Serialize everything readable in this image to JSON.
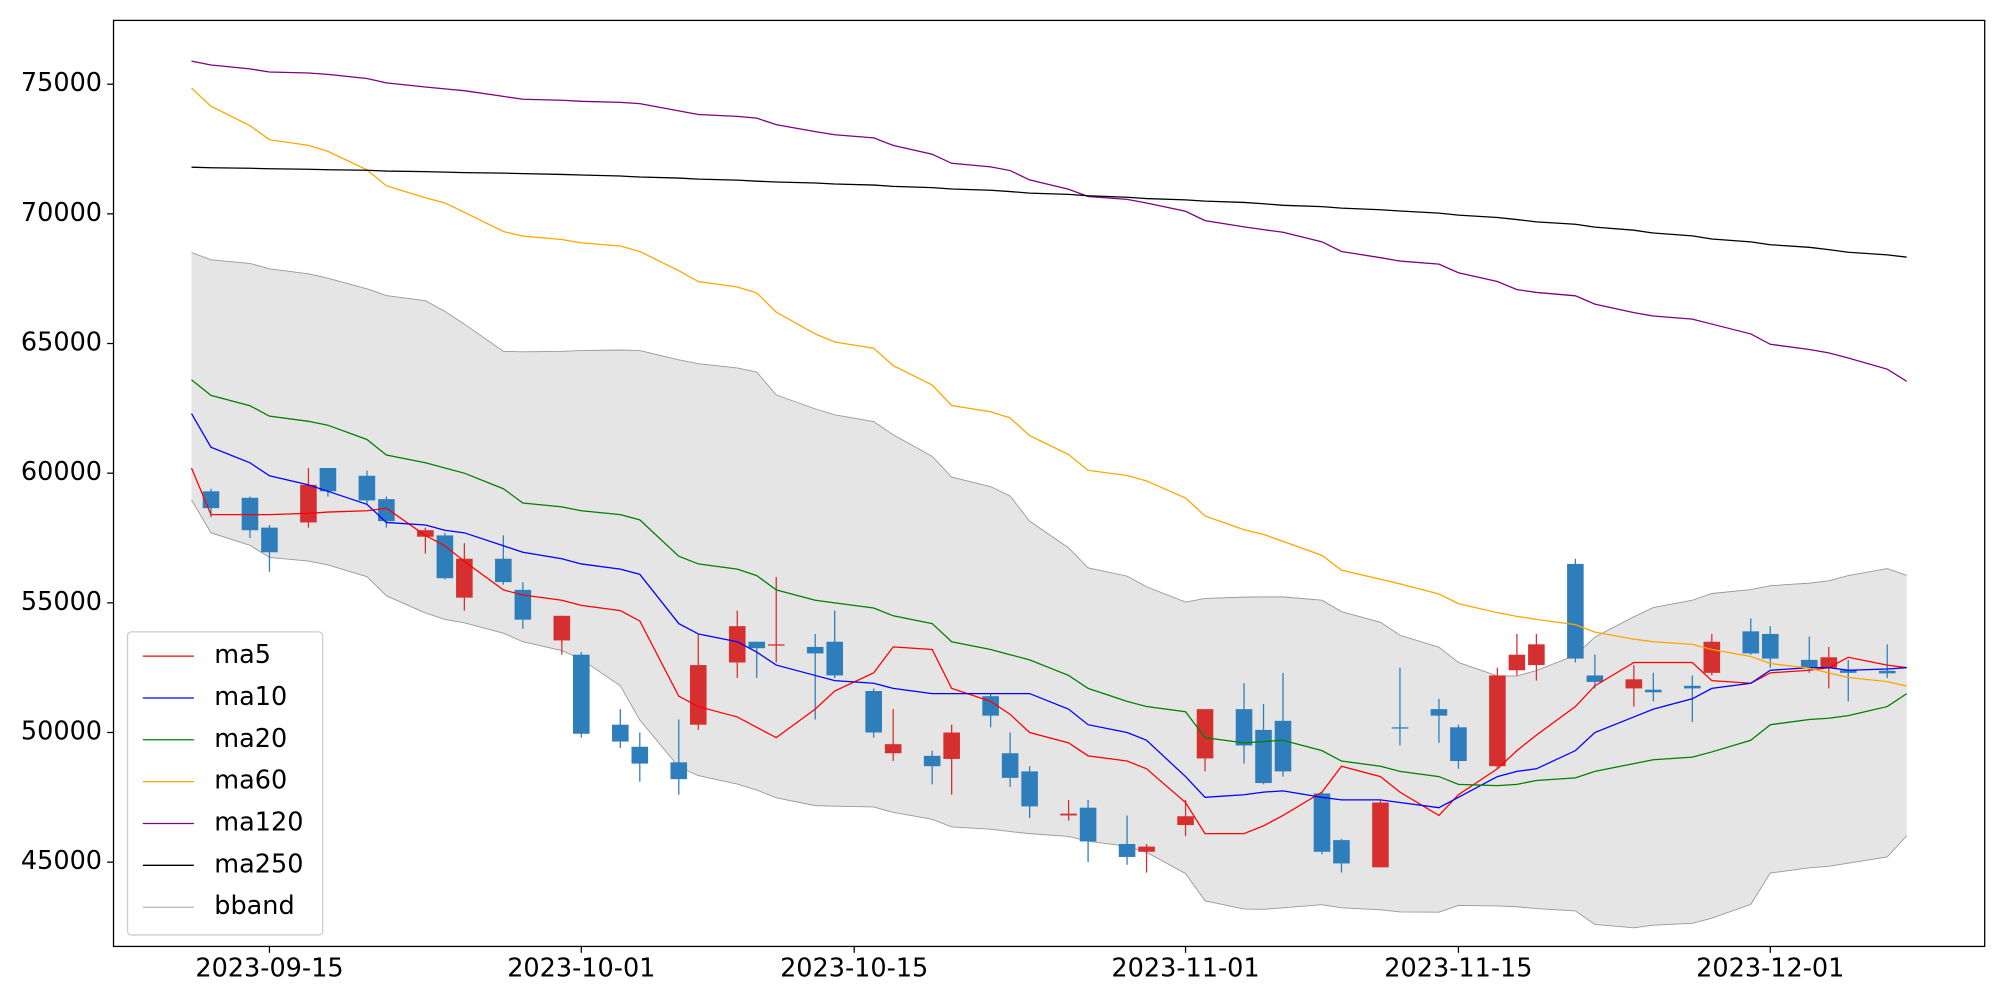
{
  "chart_data": {
    "type": "candlestick",
    "x": [
      "2023-09-11",
      "2023-09-12",
      "2023-09-14",
      "2023-09-15",
      "2023-09-17",
      "2023-09-18",
      "2023-09-20",
      "2023-09-21",
      "2023-09-23",
      "2023-09-24",
      "2023-09-25",
      "2023-09-27",
      "2023-09-28",
      "2023-09-30",
      "2023-10-01",
      "2023-10-03",
      "2023-10-04",
      "2023-10-06",
      "2023-10-07",
      "2023-10-09",
      "2023-10-10",
      "2023-10-11",
      "2023-10-13",
      "2023-10-14",
      "2023-10-16",
      "2023-10-17",
      "2023-10-19",
      "2023-10-20",
      "2023-10-22",
      "2023-10-23",
      "2023-10-24",
      "2023-10-26",
      "2023-10-27",
      "2023-10-29",
      "2023-10-30",
      "2023-11-01",
      "2023-11-02",
      "2023-11-04",
      "2023-11-05",
      "2023-11-06",
      "2023-11-08",
      "2023-11-09",
      "2023-11-11",
      "2023-11-12",
      "2023-11-14",
      "2023-11-15",
      "2023-11-17",
      "2023-11-18",
      "2023-11-19",
      "2023-11-21",
      "2023-11-22",
      "2023-11-24",
      "2023-11-25",
      "2023-11-27",
      "2023-11-28",
      "2023-11-30",
      "2023-12-01",
      "2023-12-03",
      "2023-12-04",
      "2023-12-05",
      "2023-12-07",
      "2023-12-08"
    ],
    "open": [
      null,
      59300,
      59050,
      57900,
      58100,
      60200,
      59900,
      59000,
      57550,
      57600,
      55200,
      56700,
      55500,
      53550,
      53000,
      50300,
      49450,
      48850,
      50300,
      52700,
      53500,
      53350,
      53300,
      53500,
      51600,
      49200,
      49100,
      48980,
      51400,
      49200,
      48500,
      46800,
      47100,
      45700,
      45400,
      46430,
      49000,
      50900,
      50100,
      50450,
      47650,
      45850,
      44800,
      50200,
      50900,
      50200,
      48700,
      52400,
      52600,
      56500,
      52200,
      51700,
      51650,
      51800,
      52300,
      53900,
      53800,
      52800,
      52500,
      52400,
      52380,
      null
    ],
    "high": [
      null,
      59400,
      59100,
      58000,
      60200,
      60200,
      60100,
      59100,
      57900,
      57700,
      57300,
      57600,
      55800,
      54500,
      53100,
      50900,
      50000,
      50500,
      53800,
      54700,
      53500,
      56000,
      53800,
      54700,
      51700,
      50900,
      49300,
      50300,
      51500,
      50000,
      48700,
      47400,
      47400,
      46800,
      45700,
      47400,
      50900,
      51900,
      51100,
      52300,
      47700,
      45900,
      47400,
      52500,
      51300,
      50300,
      52500,
      53800,
      53800,
      56700,
      53000,
      52600,
      52300,
      52200,
      53800,
      54400,
      54100,
      53700,
      53300,
      52800,
      53400,
      null
    ],
    "low": [
      null,
      58300,
      57500,
      56200,
      57900,
      59100,
      58800,
      57900,
      56900,
      55900,
      54700,
      55700,
      54000,
      53000,
      49800,
      49400,
      48100,
      47600,
      50100,
      52100,
      52100,
      52700,
      50500,
      52100,
      49800,
      48900,
      48000,
      47600,
      50200,
      47900,
      46700,
      46600,
      45000,
      44900,
      44600,
      46000,
      48500,
      48800,
      48000,
      48300,
      45300,
      44600,
      44800,
      49500,
      49600,
      48600,
      48600,
      52200,
      52000,
      52700,
      51700,
      51000,
      51200,
      50400,
      52200,
      53000,
      52500,
      52300,
      51700,
      51200,
      52100,
      null
    ],
    "close": [
      null,
      58650,
      57800,
      56950,
      59550,
      59300,
      58950,
      58150,
      57800,
      55950,
      56700,
      55800,
      54350,
      54500,
      49950,
      49650,
      48800,
      48200,
      52600,
      54100,
      53250,
      53400,
      53050,
      52200,
      50000,
      49550,
      48700,
      50000,
      50650,
      48250,
      47150,
      46870,
      45800,
      45200,
      45600,
      46770,
      50900,
      49500,
      48050,
      48500,
      45400,
      44950,
      47300,
      50150,
      50650,
      48900,
      52200,
      53000,
      53400,
      52850,
      51950,
      52050,
      51550,
      51700,
      53500,
      53050,
      52850,
      52500,
      52900,
      52300,
      52280,
      null
    ],
    "up_color": "#d62f2f",
    "down_color": "#2f7ebc",
    "lines": [
      {
        "name": "ma5",
        "color": "#ff0000",
        "values": [
          60200,
          58400,
          58400,
          58400,
          58450,
          58500,
          58550,
          58650,
          57600,
          57200,
          56600,
          55500,
          55300,
          55100,
          54900,
          54700,
          54300,
          51400,
          51000,
          50600,
          50200,
          49800,
          50900,
          51600,
          52300,
          53300,
          53200,
          51700,
          51200,
          50700,
          50000,
          49600,
          49100,
          48900,
          48600,
          47300,
          46100,
          46100,
          46400,
          46800,
          47700,
          48700,
          48300,
          47700,
          46800,
          47600,
          48600,
          49300,
          49900,
          51000,
          51800,
          52700,
          52700,
          52700,
          52000,
          51900,
          52300,
          52400,
          52500,
          52900,
          52600,
          52500
        ]
      },
      {
        "name": "ma10",
        "color": "#0000ff",
        "values": [
          62300,
          61000,
          60400,
          59900,
          59550,
          59300,
          58800,
          58100,
          58000,
          57800,
          57700,
          57200,
          56950,
          56700,
          56500,
          56300,
          56100,
          54200,
          53800,
          53500,
          53100,
          52600,
          52200,
          52000,
          51900,
          51700,
          51500,
          51500,
          51500,
          51500,
          51500,
          50900,
          50300,
          50000,
          49700,
          48300,
          47500,
          47600,
          47700,
          47750,
          47500,
          47400,
          47400,
          47300,
          47100,
          47500,
          48300,
          48500,
          48600,
          49300,
          50000,
          50600,
          50900,
          51300,
          51700,
          51900,
          52400,
          52500,
          52500,
          52400,
          52450,
          52500
        ]
      },
      {
        "name": "ma20",
        "color": "#008000",
        "values": [
          63600,
          63000,
          62600,
          62200,
          62000,
          61850,
          61300,
          60700,
          60400,
          60200,
          60000,
          59400,
          58850,
          58700,
          58550,
          58400,
          58200,
          56800,
          56500,
          56300,
          56050,
          55500,
          55100,
          55000,
          54800,
          54500,
          54200,
          53500,
          53200,
          53000,
          52800,
          52200,
          51700,
          51200,
          51000,
          50800,
          49800,
          49600,
          49650,
          49700,
          49300,
          48900,
          48700,
          48500,
          48300,
          48000,
          47950,
          48000,
          48150,
          48250,
          48500,
          48800,
          48950,
          49050,
          49250,
          49700,
          50300,
          50500,
          50550,
          50650,
          51000,
          51500
        ]
      },
      {
        "name": "ma60",
        "color": "#ffa500",
        "values": [
          74850,
          74150,
          73400,
          72860,
          72640,
          72410,
          71700,
          71080,
          70620,
          70420,
          70060,
          69320,
          69140,
          69010,
          68880,
          68760,
          68550,
          67810,
          67390,
          67180,
          66950,
          66210,
          65370,
          65060,
          64820,
          64150,
          63400,
          62610,
          62370,
          62130,
          61450,
          60720,
          60110,
          59910,
          59700,
          59040,
          58350,
          57820,
          57640,
          57370,
          56830,
          56260,
          55910,
          55730,
          55340,
          54970,
          54620,
          54480,
          54360,
          54160,
          53870,
          53600,
          53500,
          53400,
          53200,
          52930,
          52660,
          52480,
          52300,
          52120,
          51960,
          51790
        ]
      },
      {
        "name": "ma120",
        "color": "#800080",
        "values": [
          75890,
          75740,
          75590,
          75470,
          75430,
          75380,
          75220,
          75050,
          74890,
          74820,
          74750,
          74530,
          74420,
          74380,
          74340,
          74300,
          74250,
          73970,
          73830,
          73760,
          73690,
          73440,
          73170,
          73050,
          72930,
          72640,
          72300,
          71950,
          71810,
          71670,
          71310,
          70950,
          70670,
          70560,
          70420,
          70100,
          69740,
          69500,
          69390,
          69290,
          68920,
          68550,
          68310,
          68180,
          68060,
          67730,
          67390,
          67080,
          66970,
          66840,
          66520,
          66190,
          66060,
          65940,
          65750,
          65370,
          64970,
          64770,
          64640,
          64440,
          64010,
          63540
        ]
      },
      {
        "name": "ma250",
        "color": "#000000",
        "values": [
          71800,
          71780,
          71760,
          71740,
          71720,
          71700,
          71680,
          71650,
          71630,
          71610,
          71590,
          71570,
          71550,
          71520,
          71500,
          71460,
          71420,
          71380,
          71340,
          71300,
          71260,
          71230,
          71190,
          71150,
          71110,
          71060,
          71010,
          70960,
          70910,
          70860,
          70800,
          70750,
          70700,
          70640,
          70590,
          70540,
          70490,
          70440,
          70390,
          70330,
          70280,
          70220,
          70160,
          70110,
          70030,
          69950,
          69860,
          69780,
          69690,
          69600,
          69490,
          69370,
          69260,
          69150,
          69030,
          68920,
          68810,
          68710,
          68620,
          68520,
          68420,
          68330
        ]
      }
    ],
    "band": {
      "name": "bband",
      "color": "#999999",
      "fill": "#e5e5e5",
      "upper": [
        68510,
        68230,
        68090,
        67880,
        67690,
        67520,
        67110,
        66850,
        66650,
        66240,
        65750,
        64700,
        64680,
        64700,
        64730,
        64750,
        64730,
        64370,
        64220,
        64060,
        63900,
        63020,
        62480,
        62250,
        61990,
        61480,
        60650,
        59850,
        59480,
        59120,
        58150,
        57120,
        56350,
        56030,
        55620,
        55030,
        55170,
        55220,
        55230,
        55230,
        55100,
        54660,
        54250,
        53750,
        53290,
        52700,
        52180,
        52180,
        52390,
        52980,
        53680,
        54460,
        54820,
        55100,
        55360,
        55510,
        55660,
        55760,
        55850,
        56050,
        56320,
        56060
      ],
      "lower": [
        58970,
        57700,
        57220,
        56750,
        56610,
        56460,
        56010,
        55270,
        54610,
        54360,
        54230,
        53830,
        53500,
        53160,
        52820,
        51800,
        50480,
        48670,
        48340,
        48010,
        47780,
        47480,
        47180,
        47160,
        47130,
        46920,
        46650,
        46360,
        46270,
        46180,
        46100,
        45990,
        45810,
        45610,
        45380,
        44560,
        43510,
        43190,
        43180,
        43240,
        43360,
        43240,
        43160,
        43080,
        43070,
        43330,
        43310,
        43280,
        43210,
        43120,
        42600,
        42470,
        42570,
        42640,
        42840,
        43370,
        44580,
        44780,
        44840,
        44960,
        45200,
        46020
      ]
    },
    "xlim": [
      "2023-09-07",
      "2023-12-12"
    ],
    "xticks": [
      "2023-09-15",
      "2023-10-01",
      "2023-10-15",
      "2023-11-01",
      "2023-11-15",
      "2023-12-01"
    ],
    "ylim": [
      41750,
      77460
    ],
    "yticks": [
      45000,
      50000,
      55000,
      60000,
      65000,
      70000,
      75000
    ],
    "legend": "lower left"
  }
}
